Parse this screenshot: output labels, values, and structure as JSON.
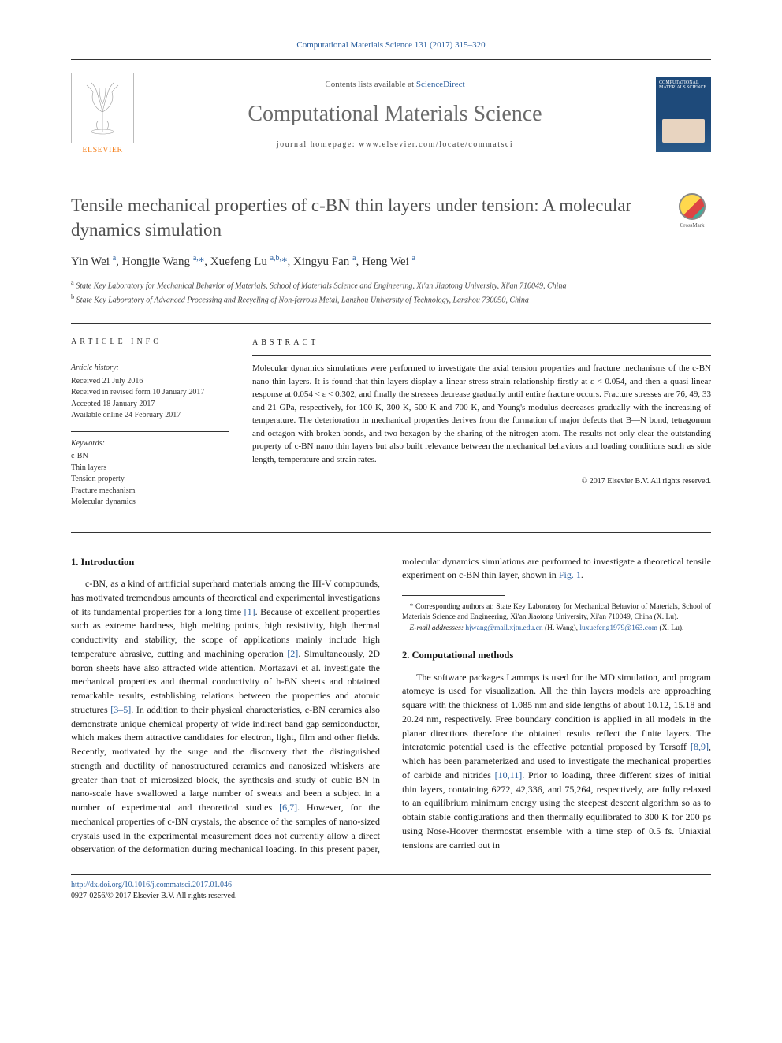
{
  "journal_ref": "Computational Materials Science 131 (2017) 315–320",
  "header": {
    "contents_prefix": "Contents lists available at ",
    "contents_link": "ScienceDirect",
    "journal_name": "Computational Materials Science",
    "homepage_label": "journal homepage: ",
    "homepage_url": "www.elsevier.com/locate/commatsci",
    "publisher": "ELSEVIER",
    "cover_text": "COMPUTATIONAL MATERIALS SCIENCE"
  },
  "crossmark": "CrossMark",
  "title": "Tensile mechanical properties of c-BN thin layers under tension: A molecular dynamics simulation",
  "authors_html": "Yin Wei <sup>a</sup>, Hongjie Wang <sup>a,</sup><a>*</a>, Xuefeng Lu <sup>a,b,</sup><a>*</a>, Xingyu Fan <sup>a</sup>, Heng Wei <sup>a</sup>",
  "affiliations": {
    "a": "State Key Laboratory for Mechanical Behavior of Materials, School of Materials Science and Engineering, Xi'an Jiaotong University, Xi'an 710049, China",
    "b": "State Key Laboratory of Advanced Processing and Recycling of Non-ferrous Metal, Lanzhou University of Technology, Lanzhou 730050, China"
  },
  "article_info": {
    "heading": "ARTICLE INFO",
    "history_label": "Article history:",
    "history": [
      "Received 21 July 2016",
      "Received in revised form 10 January 2017",
      "Accepted 18 January 2017",
      "Available online 24 February 2017"
    ],
    "keywords_label": "Keywords:",
    "keywords": [
      "c-BN",
      "Thin layers",
      "Tension property",
      "Fracture mechanism",
      "Molecular dynamics"
    ]
  },
  "abstract": {
    "heading": "ABSTRACT",
    "text": "Molecular dynamics simulations were performed to investigate the axial tension properties and fracture mechanisms of the c-BN nano thin layers. It is found that thin layers display a linear stress-strain relationship firstly at ε < 0.054, and then a quasi-linear response at 0.054 < ε < 0.302, and finally the stresses decrease gradually until entire fracture occurs. Fracture stresses are 76, 49, 33 and 21 GPa, respectively, for 100 K, 300 K, 500 K and 700 K, and Young's modulus decreases gradually with the increasing of temperature. The deterioration in mechanical properties derives from the formation of major defects that B—N bond, tetragonum and octagon with broken bonds, and two-hexagon by the sharing of the nitrogen atom. The results not only clear the outstanding property of c-BN nano thin layers but also built relevance between the mechanical behaviors and loading conditions such as side length, temperature and strain rates.",
    "copyright": "© 2017 Elsevier B.V. All rights reserved."
  },
  "sections": {
    "intro_heading": "1. Introduction",
    "intro_p1_pre": "c-BN, as a kind of artificial superhard materials among the III-V compounds, has motivated tremendous amounts of theoretical and experimental investigations of its fundamental properties for a long time ",
    "ref1": "[1]",
    "intro_p1_mid": ". Because of excellent properties such as extreme hardness, high melting points, high resistivity, high thermal conductivity and stability, the scope of applications mainly include high temperature abrasive, cutting and machining operation ",
    "ref2": "[2]",
    "intro_p1_mid2": ". Simultaneously, 2D boron sheets have also attracted wide attention. Mortazavi et al. investigate the mechanical properties and thermal conductivity of h-BN sheets and obtained remarkable results, establishing relations between the properties and atomic structures ",
    "ref35": "[3–5]",
    "intro_p1_post": ". In addition to their physical characteristics, c-BN ceramics also demonstrate unique chemical property of wide indirect band gap semiconductor, which makes them attractive candidates for electron, light, film and other fields. Recently, motivated by the surge and the discovery that the distinguished strength and ductility of nanostructured ceramics and nanosized whiskers are greater than that of microsized block, the synthesis and study of cubic BN in nano-scale have swallowed a large num",
    "intro_p2_pre": "ber of sweats and been a subject in a number of experimental and theoretical studies ",
    "ref67": "[6,7]",
    "intro_p2_mid": ". However, for the mechanical properties of c-BN crystals, the absence of the samples of nano-sized crystals used in the experimental measurement does not currently allow a direct observation of the deformation during mechanical loading. In this present paper, molecular dynamics simulations are performed to investigate a theoretical tensile experiment on c-BN thin layer, shown in ",
    "fig1": "Fig. 1",
    "intro_p2_post": ".",
    "methods_heading": "2. Computational methods",
    "methods_p1_pre": "The software packages Lammps is used for the MD simulation, and program atomeye is used for visualization. All the thin layers models are approaching square with the thickness of 1.085 nm and side lengths of about 10.12, 15.18 and 20.24 nm, respectively. Free boundary condition is applied in all models in the planar directions therefore the obtained results reflect the finite layers. The interatomic potential used is the effective potential proposed by Tersoff ",
    "ref89": "[8,9]",
    "methods_p1_mid": ", which has been parameterized and used to investigate the mechanical properties of carbide and nitrides ",
    "ref1011": "[10,11]",
    "methods_p1_post": ". Prior to loading, three different sizes of initial thin layers, containing 6272, 42,336, and 75,264, respectively, are fully relaxed to an equilibrium minimum energy using the steepest descent algorithm so as to obtain stable configurations and then thermally equilibrated to 300 K for 200 ps using Nose-Hoover thermostat ensemble with a time step of 0.5 fs. Uniaxial tensions are carried out in"
  },
  "footnotes": {
    "corr": "* Corresponding authors at: State Key Laboratory for Mechanical Behavior of Materials, School of Materials Science and Engineering, Xi'an Jiaotong University, Xi'an 710049, China (X. Lu).",
    "email_label": "E-mail addresses: ",
    "email1": "hjwang@mail.xjtu.edu.cn",
    "email1_who": " (H. Wang), ",
    "email2": "luxuefeng1979@163.com",
    "email2_who": " (X. Lu)."
  },
  "footer": {
    "doi": "http://dx.doi.org/10.1016/j.commatsci.2017.01.046",
    "issn_line": "0927-0256/© 2017 Elsevier B.V. All rights reserved."
  },
  "colors": {
    "link": "#2b5f9e",
    "publisher_orange": "#f58220",
    "title_gray": "#505050"
  }
}
